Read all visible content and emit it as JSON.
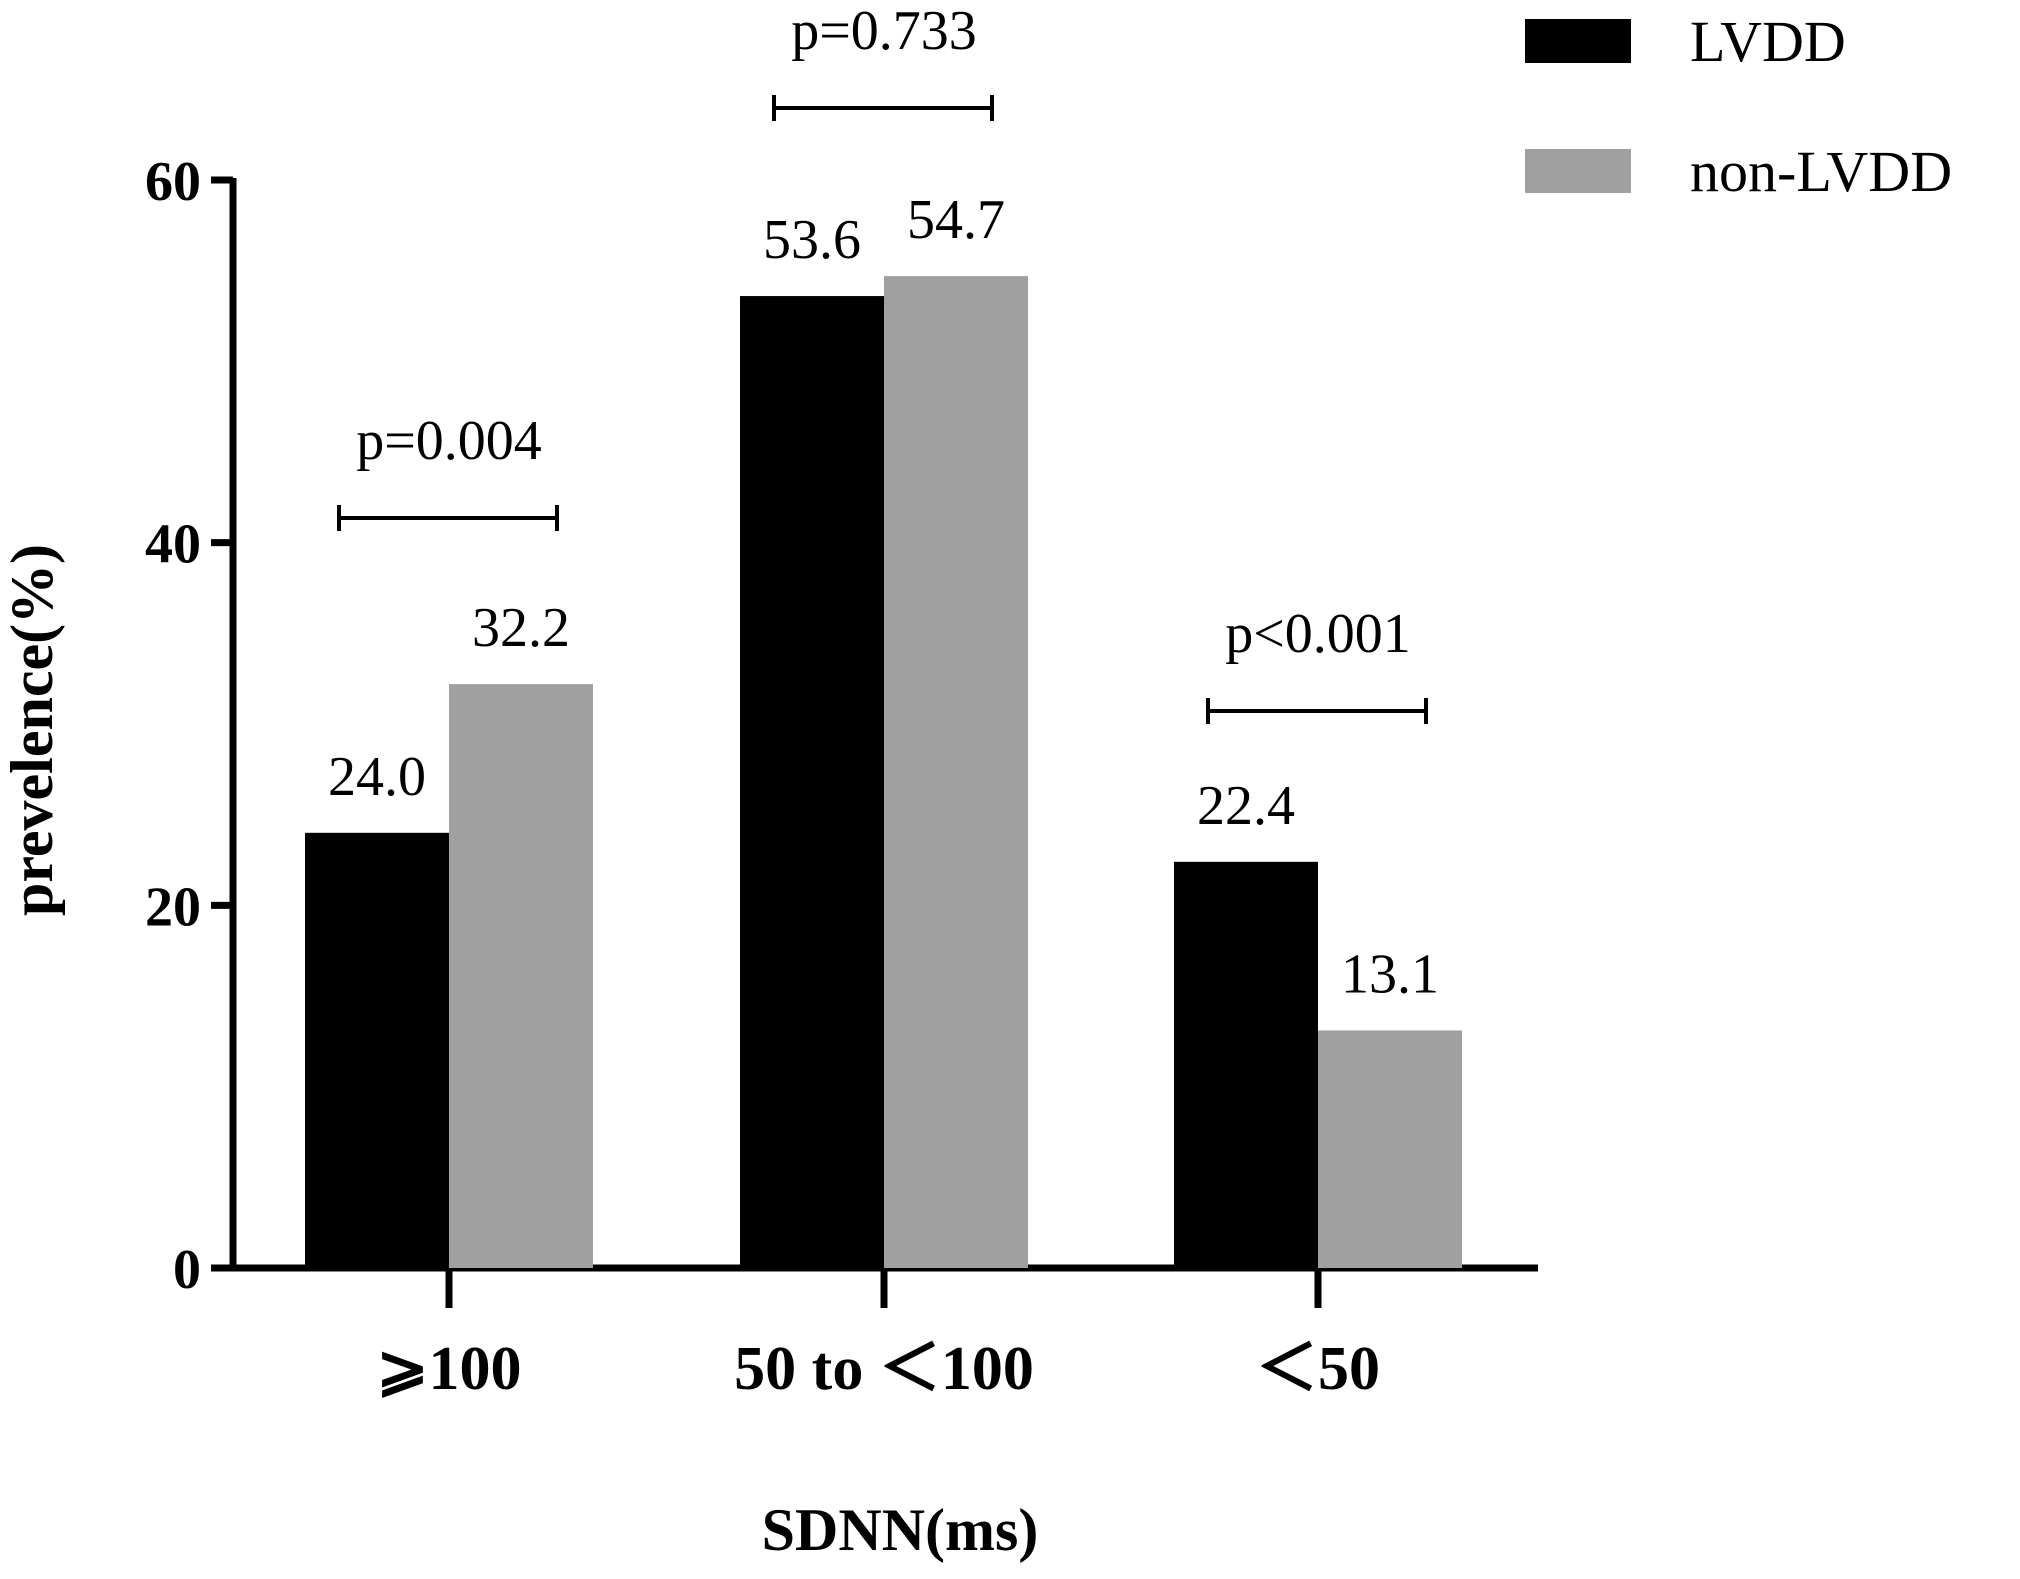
{
  "chart_data": {
    "type": "bar",
    "categories": [
      "⩾100",
      "50 to ＜100",
      "＜50"
    ],
    "series": [
      {
        "name": "LVDD",
        "values": [
          24.0,
          53.6,
          22.4
        ],
        "color": "#000000"
      },
      {
        "name": "non-LVDD",
        "values": [
          32.2,
          54.7,
          13.1
        ],
        "color": "#a0a0a0"
      }
    ],
    "value_labels": [
      [
        "24.0",
        "53.6",
        "22.4"
      ],
      [
        "32.2",
        "54.7",
        "13.1"
      ]
    ],
    "p_values": [
      "p=0.004",
      "p=0.733",
      "p<0.001"
    ],
    "xlabel": "SDNN(ms)",
    "ylabel": "prevelence(%)",
    "ylim": [
      0,
      60
    ],
    "yticks": [
      0,
      20,
      40,
      60
    ],
    "grid": false,
    "legend_position": "top-right"
  }
}
